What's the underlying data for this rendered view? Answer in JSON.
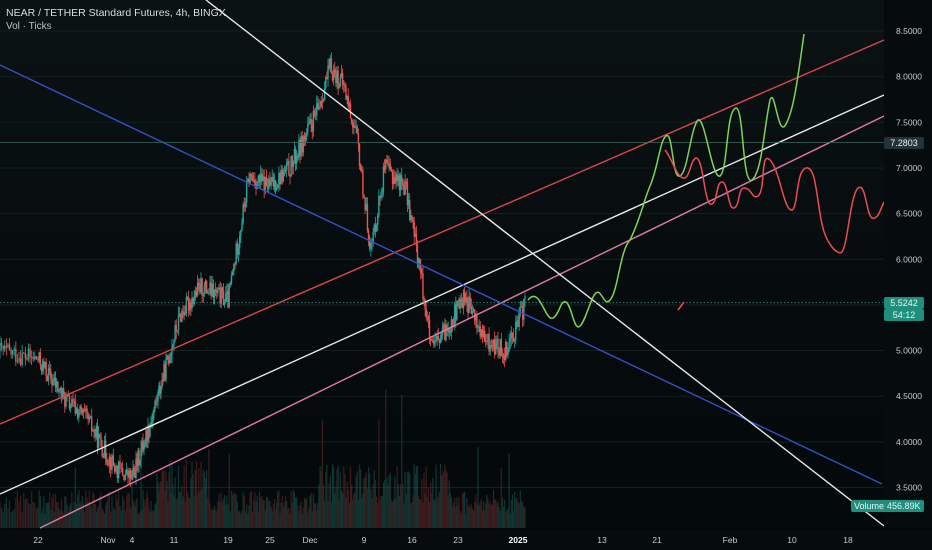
{
  "legend": {
    "title": "NEAR / TETHER Standard Futures, 4h, BINGX",
    "subtitle": "Vol · Ticks"
  },
  "price_tags": {
    "hline_price": "7.2803",
    "last_price": "5.5242",
    "countdown": "54:12"
  },
  "volume_tag": {
    "label": "Volume",
    "value": "456.89K"
  },
  "colors": {
    "background": "#060c0e",
    "up_candle": "#26a69a",
    "down_candle": "#ef5350",
    "white_line": "#e8e8e8",
    "blue_line": "#3550c8",
    "red_line": "#e0434f",
    "pink_line": "#e07aa0",
    "green_path": "#7fd35a",
    "red_path": "#f04a55",
    "tag_teal": "#1f8f7d",
    "tag_dark": "#23333a"
  },
  "chart_data": {
    "type": "candlestick",
    "symbol": "NEAR / TETHER Standard Futures",
    "timeframe": "4h",
    "exchange": "BINGX",
    "ylim": [
      3.2,
      8.7
    ],
    "y_ticks": [
      "8.5000",
      "8.0000",
      "7.5000",
      "7.0000",
      "6.5000",
      "6.0000",
      "5.5000",
      "5.0000",
      "4.5000",
      "4.0000",
      "3.5000"
    ],
    "x_ticks": [
      "22",
      "Nov",
      "4",
      "11",
      "19",
      "25",
      "Dec",
      "9",
      "16",
      "23",
      "2025",
      "13",
      "21",
      "Feb",
      "10",
      "18"
    ],
    "price_path": [
      {
        "d": "Oct 18",
        "p": 5.0
      },
      {
        "d": "Oct 22",
        "p": 4.9
      },
      {
        "d": "Oct 26",
        "p": 4.45
      },
      {
        "d": "Oct 29",
        "p": 4.25
      },
      {
        "d": "Nov 2",
        "p": 3.7
      },
      {
        "d": "Nov 4",
        "p": 3.6
      },
      {
        "d": "Nov 7",
        "p": 4.2
      },
      {
        "d": "Nov 10",
        "p": 4.9
      },
      {
        "d": "Nov 12",
        "p": 5.4
      },
      {
        "d": "Nov 15",
        "p": 5.7
      },
      {
        "d": "Nov 19",
        "p": 5.55
      },
      {
        "d": "Nov 22",
        "p": 6.9
      },
      {
        "d": "Nov 25",
        "p": 6.8
      },
      {
        "d": "Nov 28",
        "p": 7.0
      },
      {
        "d": "Dec 2",
        "p": 7.6
      },
      {
        "d": "Dec 4",
        "p": 8.1
      },
      {
        "d": "Dec 6",
        "p": 7.9
      },
      {
        "d": "Dec 8",
        "p": 7.3
      },
      {
        "d": "Dec 10",
        "p": 6.1
      },
      {
        "d": "Dec 12",
        "p": 7.0
      },
      {
        "d": "Dec 15",
        "p": 6.8
      },
      {
        "d": "Dec 17",
        "p": 6.0
      },
      {
        "d": "Dec 19",
        "p": 5.0
      },
      {
        "d": "Dec 21",
        "p": 5.2
      },
      {
        "d": "Dec 24",
        "p": 5.6
      },
      {
        "d": "Dec 27",
        "p": 5.1
      },
      {
        "d": "Dec 30",
        "p": 5.0
      },
      {
        "d": "Jan 1",
        "p": 5.3
      },
      {
        "d": "Jan 2",
        "p": 5.52
      }
    ],
    "horizontal_line": {
      "price": 7.2803
    },
    "last_price": 5.5242,
    "last_volume": "456.89K"
  }
}
